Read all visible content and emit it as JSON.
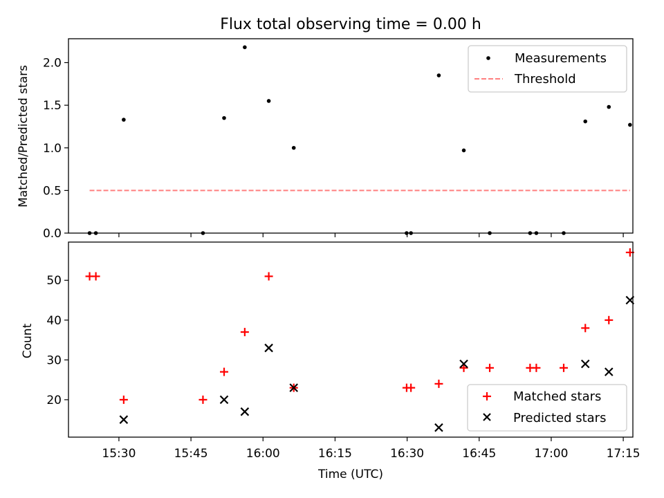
{
  "chart_data": [
    {
      "type": "scatter",
      "title": "Flux total observing time = 0.00 h",
      "xlabel": "",
      "ylabel": "Matched/Predicted stars",
      "ylim": [
        0,
        2.28
      ],
      "yticks": [
        "0.0",
        "0.5",
        "1.0",
        "1.5",
        "2.0"
      ],
      "x_unit": "minutes since 15:00 UTC",
      "xlim": [
        19.5,
        137
      ],
      "grid": false,
      "legend_position": "upper right",
      "series": [
        {
          "name": "Measurements",
          "marker": "point",
          "color": "#000000",
          "x": [
            23.9,
            25.2,
            31.0,
            47.5,
            51.9,
            56.2,
            61.2,
            66.4,
            89.9,
            90.8,
            96.6,
            101.8,
            107.2,
            115.6,
            116.9,
            122.6,
            127.1,
            132.0,
            136.4
          ],
          "y": [
            0.0,
            0.0,
            1.33,
            0.0,
            1.35,
            2.18,
            1.55,
            1.0,
            0.0,
            0.0,
            1.85,
            0.97,
            0.0,
            0.0,
            0.0,
            0.0,
            1.31,
            1.48,
            1.27
          ]
        },
        {
          "name": "Threshold",
          "style": "dashed",
          "color": "#ff7f7f",
          "x": [
            23.9,
            136.4
          ],
          "y": [
            0.5,
            0.5
          ]
        }
      ]
    },
    {
      "type": "scatter",
      "title": "",
      "xlabel": "Time (UTC)",
      "ylabel": "Count",
      "ylim": [
        10.6,
        59.6
      ],
      "yticks": [
        "20",
        "30",
        "40",
        "50"
      ],
      "x_unit": "minutes since 15:00 UTC",
      "xlim": [
        19.5,
        137
      ],
      "xticks": [
        "15:30",
        "15:45",
        "16:00",
        "16:15",
        "16:30",
        "16:45",
        "17:00",
        "17:15"
      ],
      "grid": false,
      "legend_position": "lower right",
      "series": [
        {
          "name": "Matched stars",
          "marker": "plus",
          "color": "#ff0000",
          "x": [
            23.9,
            25.2,
            31.0,
            47.5,
            51.9,
            56.2,
            61.2,
            66.4,
            89.9,
            90.8,
            96.6,
            101.8,
            107.2,
            115.6,
            116.9,
            122.6,
            127.1,
            132.0,
            136.4
          ],
          "y": [
            51,
            51,
            20,
            20,
            27,
            37,
            51,
            23,
            23,
            23,
            24,
            28,
            28,
            28,
            28,
            28,
            38,
            40,
            57
          ]
        },
        {
          "name": "Predicted stars",
          "marker": "x",
          "color": "#000000",
          "x": [
            31.0,
            51.9,
            56.2,
            61.2,
            66.4,
            96.6,
            101.8,
            127.1,
            132.0,
            136.4
          ],
          "y": [
            15,
            20,
            17,
            33,
            23,
            13,
            29,
            29,
            27,
            45
          ]
        }
      ]
    }
  ]
}
